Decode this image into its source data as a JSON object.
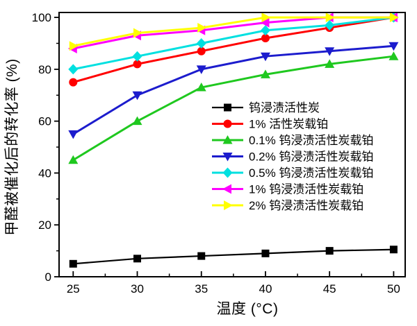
{
  "chart_data": {
    "type": "line",
    "title": "",
    "xlabel": "温度 (°C)",
    "ylabel": "甲醛被催化后的转化率 (%)",
    "background": "#ffffff",
    "axis_color": "#000000",
    "grid": false,
    "x": [
      25,
      30,
      35,
      40,
      45,
      50
    ],
    "xlim": [
      23.9,
      50.9
    ],
    "ylim": [
      0,
      101.9
    ],
    "x_major_ticks": [
      25,
      30,
      35,
      40,
      45,
      50
    ],
    "x_minor_ticks": [
      27.5,
      32.5,
      37.5,
      42.5,
      47.5
    ],
    "y_major_ticks": [
      0,
      20,
      40,
      60,
      80,
      100
    ],
    "y_minor_ticks": [
      10,
      30,
      50,
      70,
      90
    ],
    "legend_position": "inside-right-middle",
    "series": [
      {
        "name": "钨浸渍活性炭",
        "color": "#000000",
        "marker": "square",
        "line_width": 2.2,
        "values": [
          5,
          7,
          8,
          9,
          10,
          10.5
        ]
      },
      {
        "name": "1% 活性炭载铂",
        "color": "#ff0000",
        "marker": "circle",
        "line_width": 3,
        "values": [
          75,
          82,
          87,
          92,
          96,
          100
        ]
      },
      {
        "name": "0.1% 钨浸渍活性炭载铂",
        "color": "#1fc81f",
        "marker": "triangle-up",
        "line_width": 3,
        "values": [
          45,
          60,
          73,
          78,
          82,
          85
        ]
      },
      {
        "name": "0.2% 钨浸渍活性炭载铂",
        "color": "#1c1ccd",
        "marker": "triangle-down",
        "line_width": 3,
        "values": [
          55,
          70,
          80,
          85,
          87,
          89
        ]
      },
      {
        "name": "0.5% 钨浸渍活性炭载铂",
        "color": "#00e0e0",
        "marker": "diamond",
        "line_width": 3,
        "values": [
          80,
          85,
          90,
          95,
          97,
          100
        ]
      },
      {
        "name": "1% 钨浸渍活性炭载铂",
        "color": "#ff00ff",
        "marker": "triangle-left",
        "line_width": 3,
        "values": [
          88,
          93,
          95,
          98,
          100,
          100
        ]
      },
      {
        "name": "2% 钨浸渍活性炭载铂",
        "color": "#ffff00",
        "marker": "triangle-right",
        "line_width": 3,
        "values": [
          89,
          94,
          96,
          100,
          100,
          100
        ]
      }
    ]
  }
}
